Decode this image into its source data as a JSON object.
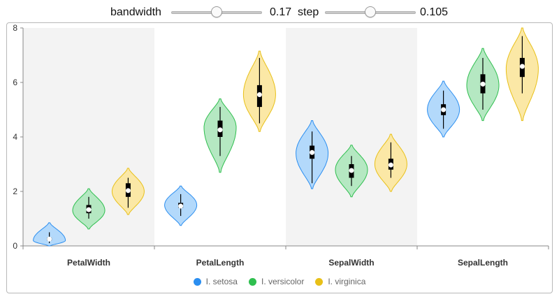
{
  "controls": {
    "bandwidth_label": "bandwidth",
    "bandwidth_value": "0.17",
    "bandwidth_fraction": 0.5,
    "step_label": "step",
    "step_value": "0.105",
    "step_fraction": 0.5
  },
  "chart_data": {
    "type": "violin",
    "categories": [
      "PetalWidth",
      "PetalLength",
      "SepalWidth",
      "SepalLength"
    ],
    "ylim": [
      0,
      8
    ],
    "yticks": [
      "0",
      "2",
      "4",
      "6",
      "8"
    ],
    "ytick_values": [
      0,
      2,
      4,
      6,
      8
    ],
    "xlabel": "",
    "ylabel": "",
    "title": "",
    "legend_position": "bottom-center",
    "shaded_categories": [
      "PetalWidth",
      "SepalWidth"
    ],
    "series": [
      {
        "name": "I. setosa",
        "color": "#2b8ef0",
        "fill": "#b3d9fb",
        "stats": [
          {
            "min": 0.0,
            "max": 0.85,
            "whisker_low": 0.1,
            "whisker_high": 0.5,
            "q1": 0.2,
            "median": 0.2,
            "q3": 0.3,
            "mean": 0.25
          },
          {
            "min": 0.75,
            "max": 2.2,
            "whisker_low": 1.1,
            "whisker_high": 1.9,
            "q1": 1.4,
            "median": 1.5,
            "q3": 1.58,
            "mean": 1.46
          },
          {
            "min": 2.1,
            "max": 4.6,
            "whisker_low": 2.3,
            "whisker_high": 4.2,
            "q1": 3.2,
            "median": 3.4,
            "q3": 3.68,
            "mean": 3.43
          },
          {
            "min": 4.0,
            "max": 6.05,
            "whisker_low": 4.3,
            "whisker_high": 5.7,
            "q1": 4.8,
            "median": 5.0,
            "q3": 5.2,
            "mean": 5.0
          }
        ]
      },
      {
        "name": "I. versicolor",
        "color": "#2fbf4f",
        "fill": "#b5e8c2",
        "stats": [
          {
            "min": 0.62,
            "max": 2.1,
            "whisker_low": 1.0,
            "whisker_high": 1.8,
            "q1": 1.2,
            "median": 1.3,
            "q3": 1.5,
            "mean": 1.33
          },
          {
            "min": 2.7,
            "max": 5.4,
            "whisker_low": 3.3,
            "whisker_high": 5.1,
            "q1": 4.0,
            "median": 4.35,
            "q3": 4.6,
            "mean": 4.26
          },
          {
            "min": 1.8,
            "max": 3.7,
            "whisker_low": 2.2,
            "whisker_high": 3.3,
            "q1": 2.5,
            "median": 2.8,
            "q3": 3.0,
            "mean": 2.77
          },
          {
            "min": 4.6,
            "max": 7.25,
            "whisker_low": 5.0,
            "whisker_high": 6.9,
            "q1": 5.6,
            "median": 5.9,
            "q3": 6.3,
            "mean": 5.94
          }
        ]
      },
      {
        "name": "I. virginica",
        "color": "#e8c018",
        "fill": "#fbe8a6",
        "stats": [
          {
            "min": 1.15,
            "max": 2.85,
            "whisker_low": 1.4,
            "whisker_high": 2.5,
            "q1": 1.8,
            "median": 2.0,
            "q3": 2.3,
            "mean": 2.03
          },
          {
            "min": 4.2,
            "max": 7.15,
            "whisker_low": 4.5,
            "whisker_high": 6.9,
            "q1": 5.1,
            "median": 5.55,
            "q3": 5.9,
            "mean": 5.55
          },
          {
            "min": 2.0,
            "max": 4.1,
            "whisker_low": 2.5,
            "whisker_high": 3.8,
            "q1": 2.8,
            "median": 3.0,
            "q3": 3.2,
            "mean": 2.97
          },
          {
            "min": 4.6,
            "max": 8.0,
            "whisker_low": 5.6,
            "whisker_high": 7.7,
            "q1": 6.2,
            "median": 6.5,
            "q3": 6.9,
            "mean": 6.59
          }
        ]
      }
    ]
  }
}
